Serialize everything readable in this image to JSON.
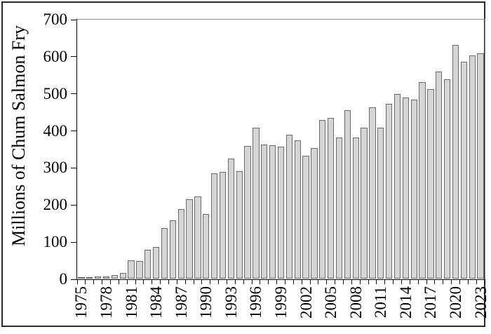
{
  "chart_data": {
    "type": "bar",
    "title": "",
    "xlabel": "",
    "ylabel": "Millions of Chum Salmon Fry",
    "ylim": [
      0,
      700
    ],
    "yticks": [
      0,
      100,
      200,
      300,
      400,
      500,
      600,
      700
    ],
    "grid": "off",
    "legend_position": "none",
    "x_tick_label_every": 3,
    "categories": [
      "1975",
      "1976",
      "1977",
      "1978",
      "1979",
      "1980",
      "1981",
      "1982",
      "1983",
      "1984",
      "1985",
      "1986",
      "1987",
      "1988",
      "1989",
      "1990",
      "1991",
      "1992",
      "1993",
      "1994",
      "1995",
      "1996",
      "1997",
      "1998",
      "1999",
      "2000",
      "2001",
      "2002",
      "2003",
      "2004",
      "2005",
      "2006",
      "2007",
      "2008",
      "2009",
      "2010",
      "2011",
      "2012",
      "2013",
      "2014",
      "2015",
      "2016",
      "2017",
      "2018",
      "2019",
      "2020",
      "2021",
      "2022",
      "2023"
    ],
    "values": [
      4,
      4,
      5,
      6,
      10,
      15,
      50,
      48,
      78,
      85,
      136,
      157,
      188,
      213,
      221,
      174,
      284,
      288,
      323,
      289,
      357,
      406,
      362,
      360,
      356,
      387,
      372,
      331,
      352,
      428,
      434,
      380,
      455,
      380,
      407,
      461,
      406,
      471,
      497,
      489,
      482,
      529,
      511,
      558,
      538,
      630,
      585,
      601,
      608
    ],
    "colors": {
      "bar_fill": "#d5d5d5",
      "bar_border": "#6a6a6a",
      "axis": "#000000",
      "spine": "#8c8c8c",
      "frame_border": "#2a2a2a",
      "background": "#ffffff"
    }
  }
}
